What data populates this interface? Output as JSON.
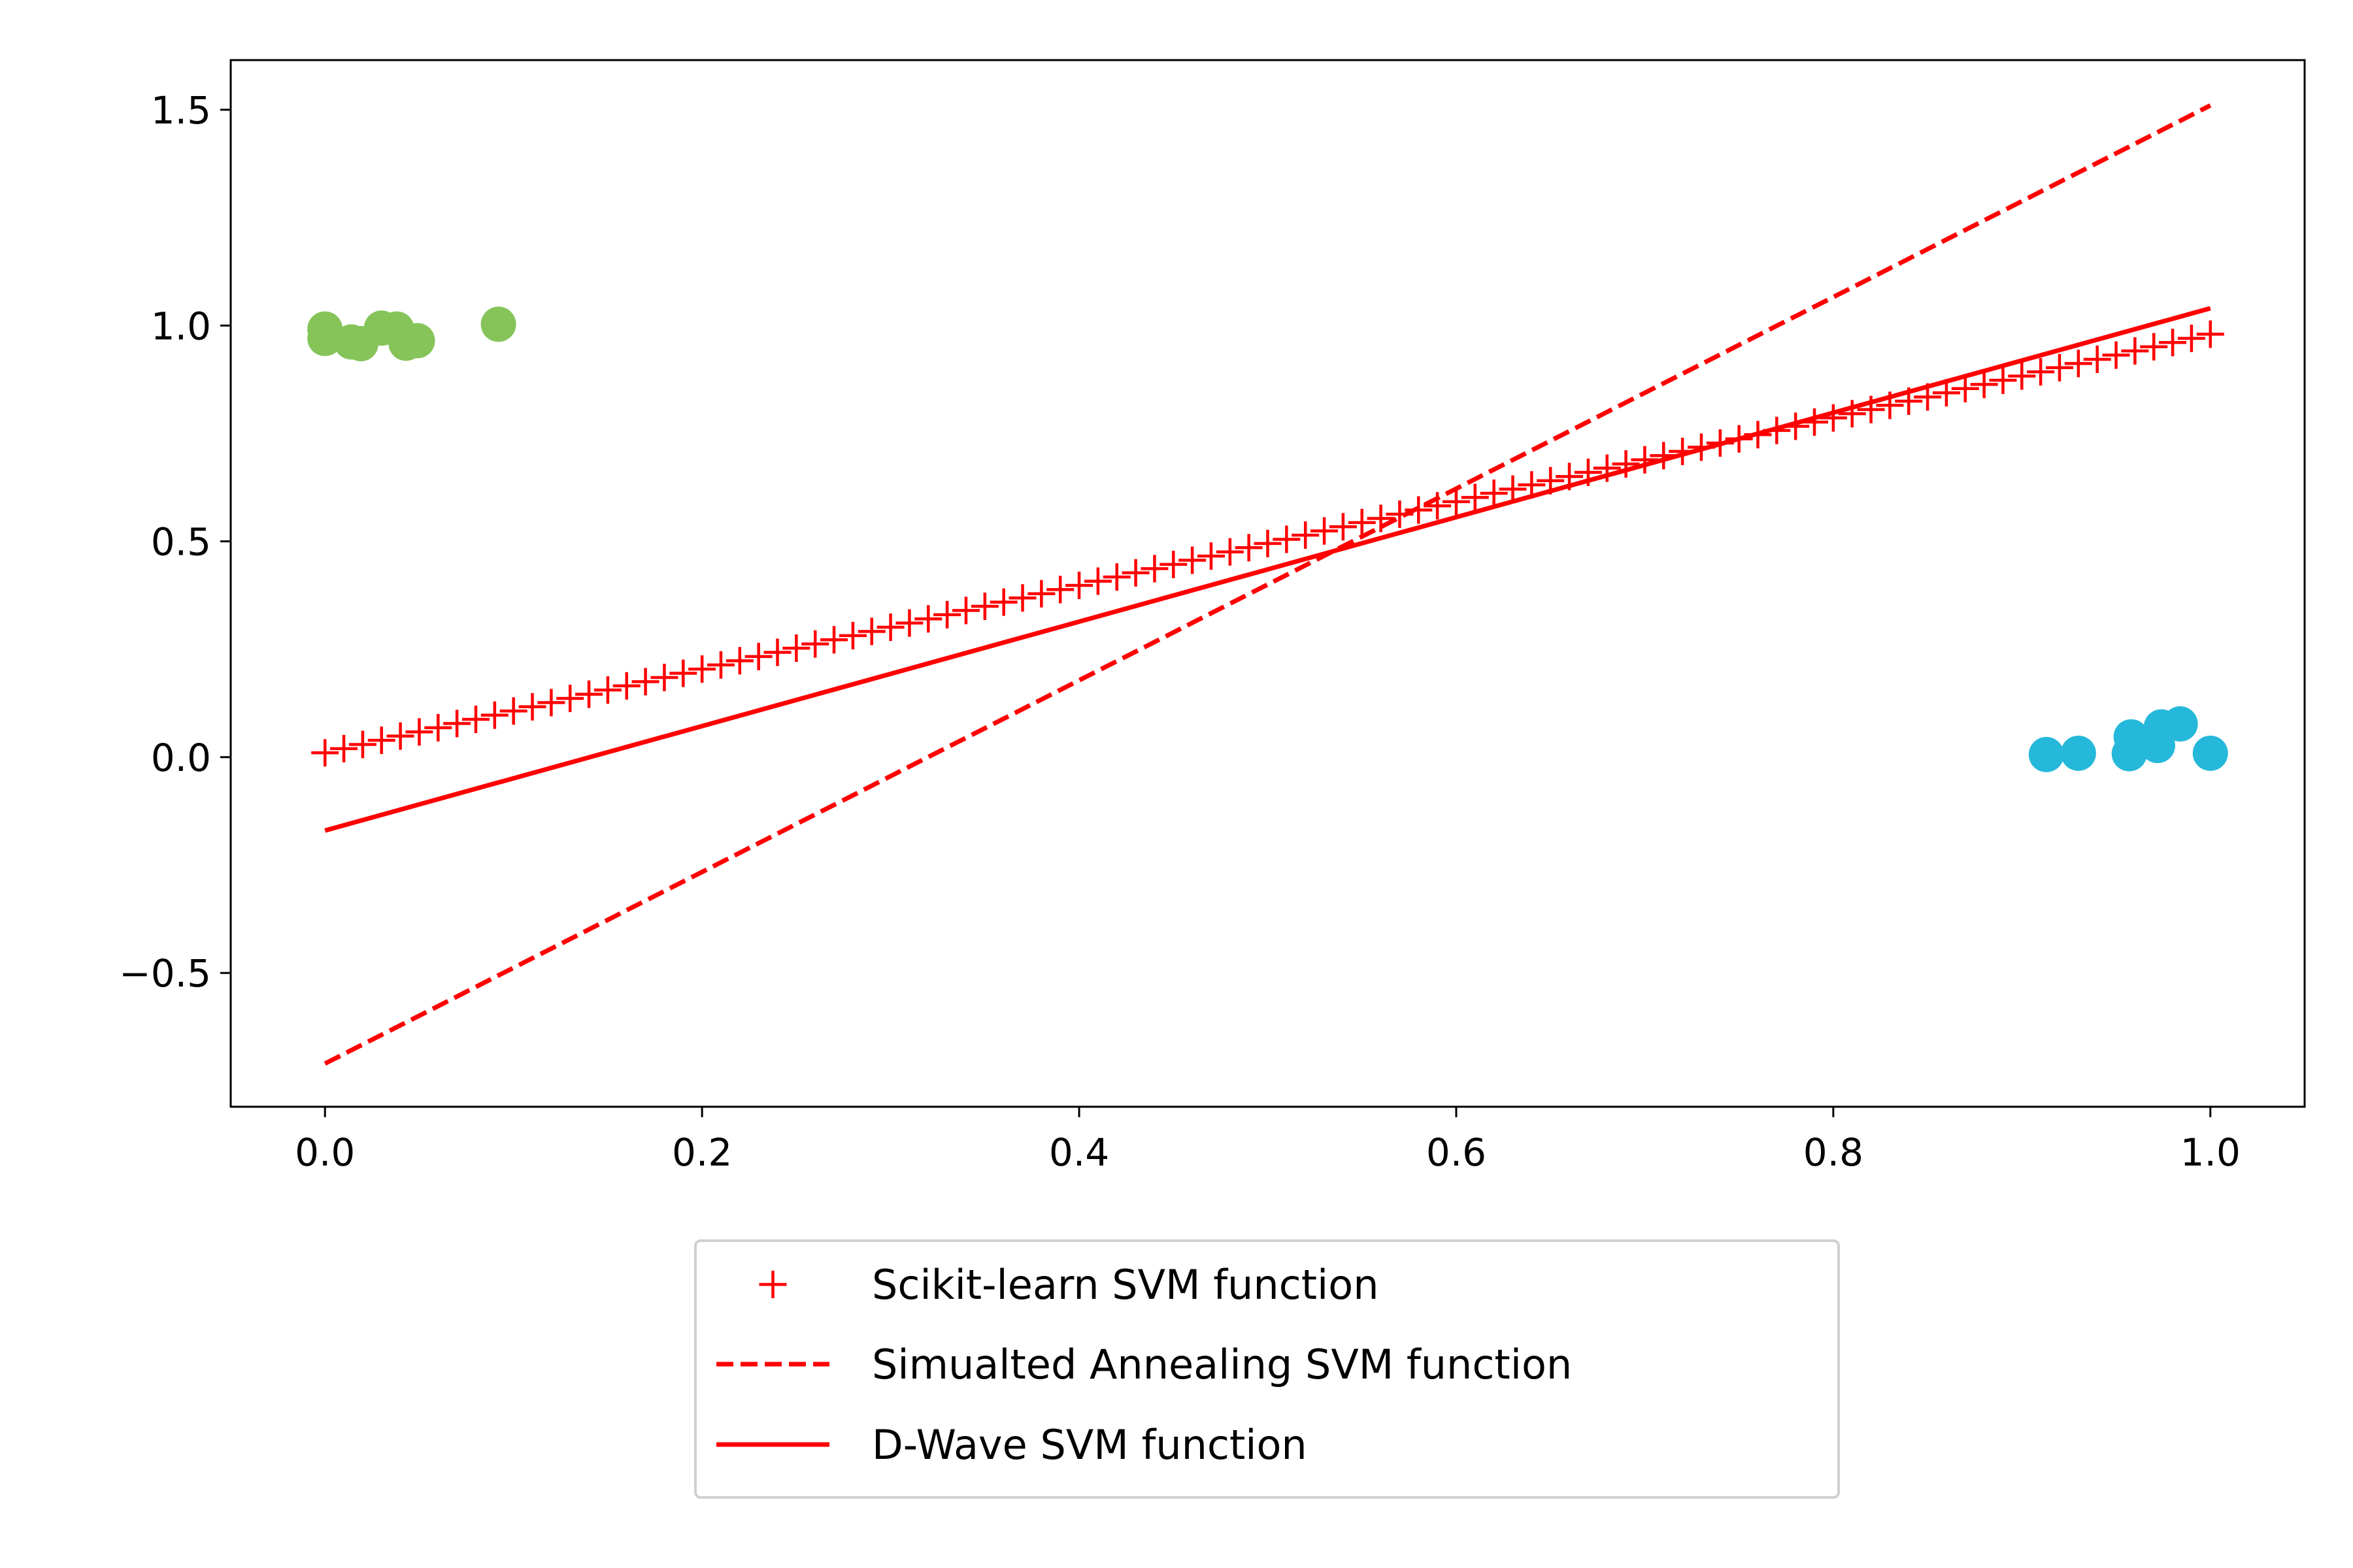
{
  "chart_data": {
    "type": "scatter",
    "title": "",
    "xlabel": "",
    "ylabel": "",
    "xlim": [
      -0.05,
      1.05
    ],
    "ylim": [
      -0.81,
      1.615
    ],
    "grid": false,
    "legend_placement": "below-center",
    "x_ticks": [
      "0.0",
      "0.2",
      "0.4",
      "0.6",
      "0.8",
      "1.0"
    ],
    "x_tick_values": [
      0,
      0.2,
      0.4,
      0.6,
      0.8,
      1.0
    ],
    "y_ticks": [
      "−0.5",
      "0.0",
      "0.5",
      "1.0",
      "1.5"
    ],
    "y_tick_values": [
      -0.5,
      0,
      0.5,
      1.0,
      1.5
    ],
    "scatter_groups": [
      {
        "color": "#86c45a",
        "points": [
          [
            0.0,
            0.992
          ],
          [
            0.0,
            0.97
          ],
          [
            0.014,
            0.962
          ],
          [
            0.019,
            0.958
          ],
          [
            0.03,
            0.994
          ],
          [
            0.038,
            0.992
          ],
          [
            0.043,
            0.959
          ],
          [
            0.049,
            0.965
          ],
          [
            0.092,
            1.003
          ]
        ]
      },
      {
        "color": "#25b8da",
        "points": [
          [
            0.913,
            0.006
          ],
          [
            0.93,
            0.009
          ],
          [
            0.957,
            0.008
          ],
          [
            0.958,
            0.047
          ],
          [
            0.972,
            0.027
          ],
          [
            0.974,
            0.07
          ],
          [
            0.984,
            0.077
          ],
          [
            1.0,
            0.009
          ]
        ]
      }
    ],
    "series": [
      {
        "name": "Scikit-learn SVM function",
        "style": "plus-markers",
        "color": "#ff0000",
        "x_range": [
          0,
          1
        ],
        "y_at_x0": 0.01,
        "y_at_x1": 0.98,
        "n_points": 101
      },
      {
        "name": "Simualted Annealing SVM function",
        "style": "dashed",
        "color": "#ff0000",
        "x_range": [
          0,
          1
        ],
        "y_at_x0": -0.71,
        "y_at_x1": 1.51
      },
      {
        "name": "D-Wave SVM function",
        "style": "solid",
        "color": "#ff0000",
        "x_range": [
          0,
          1
        ],
        "y_at_x0": -0.17,
        "y_at_x1": 1.04
      }
    ]
  }
}
